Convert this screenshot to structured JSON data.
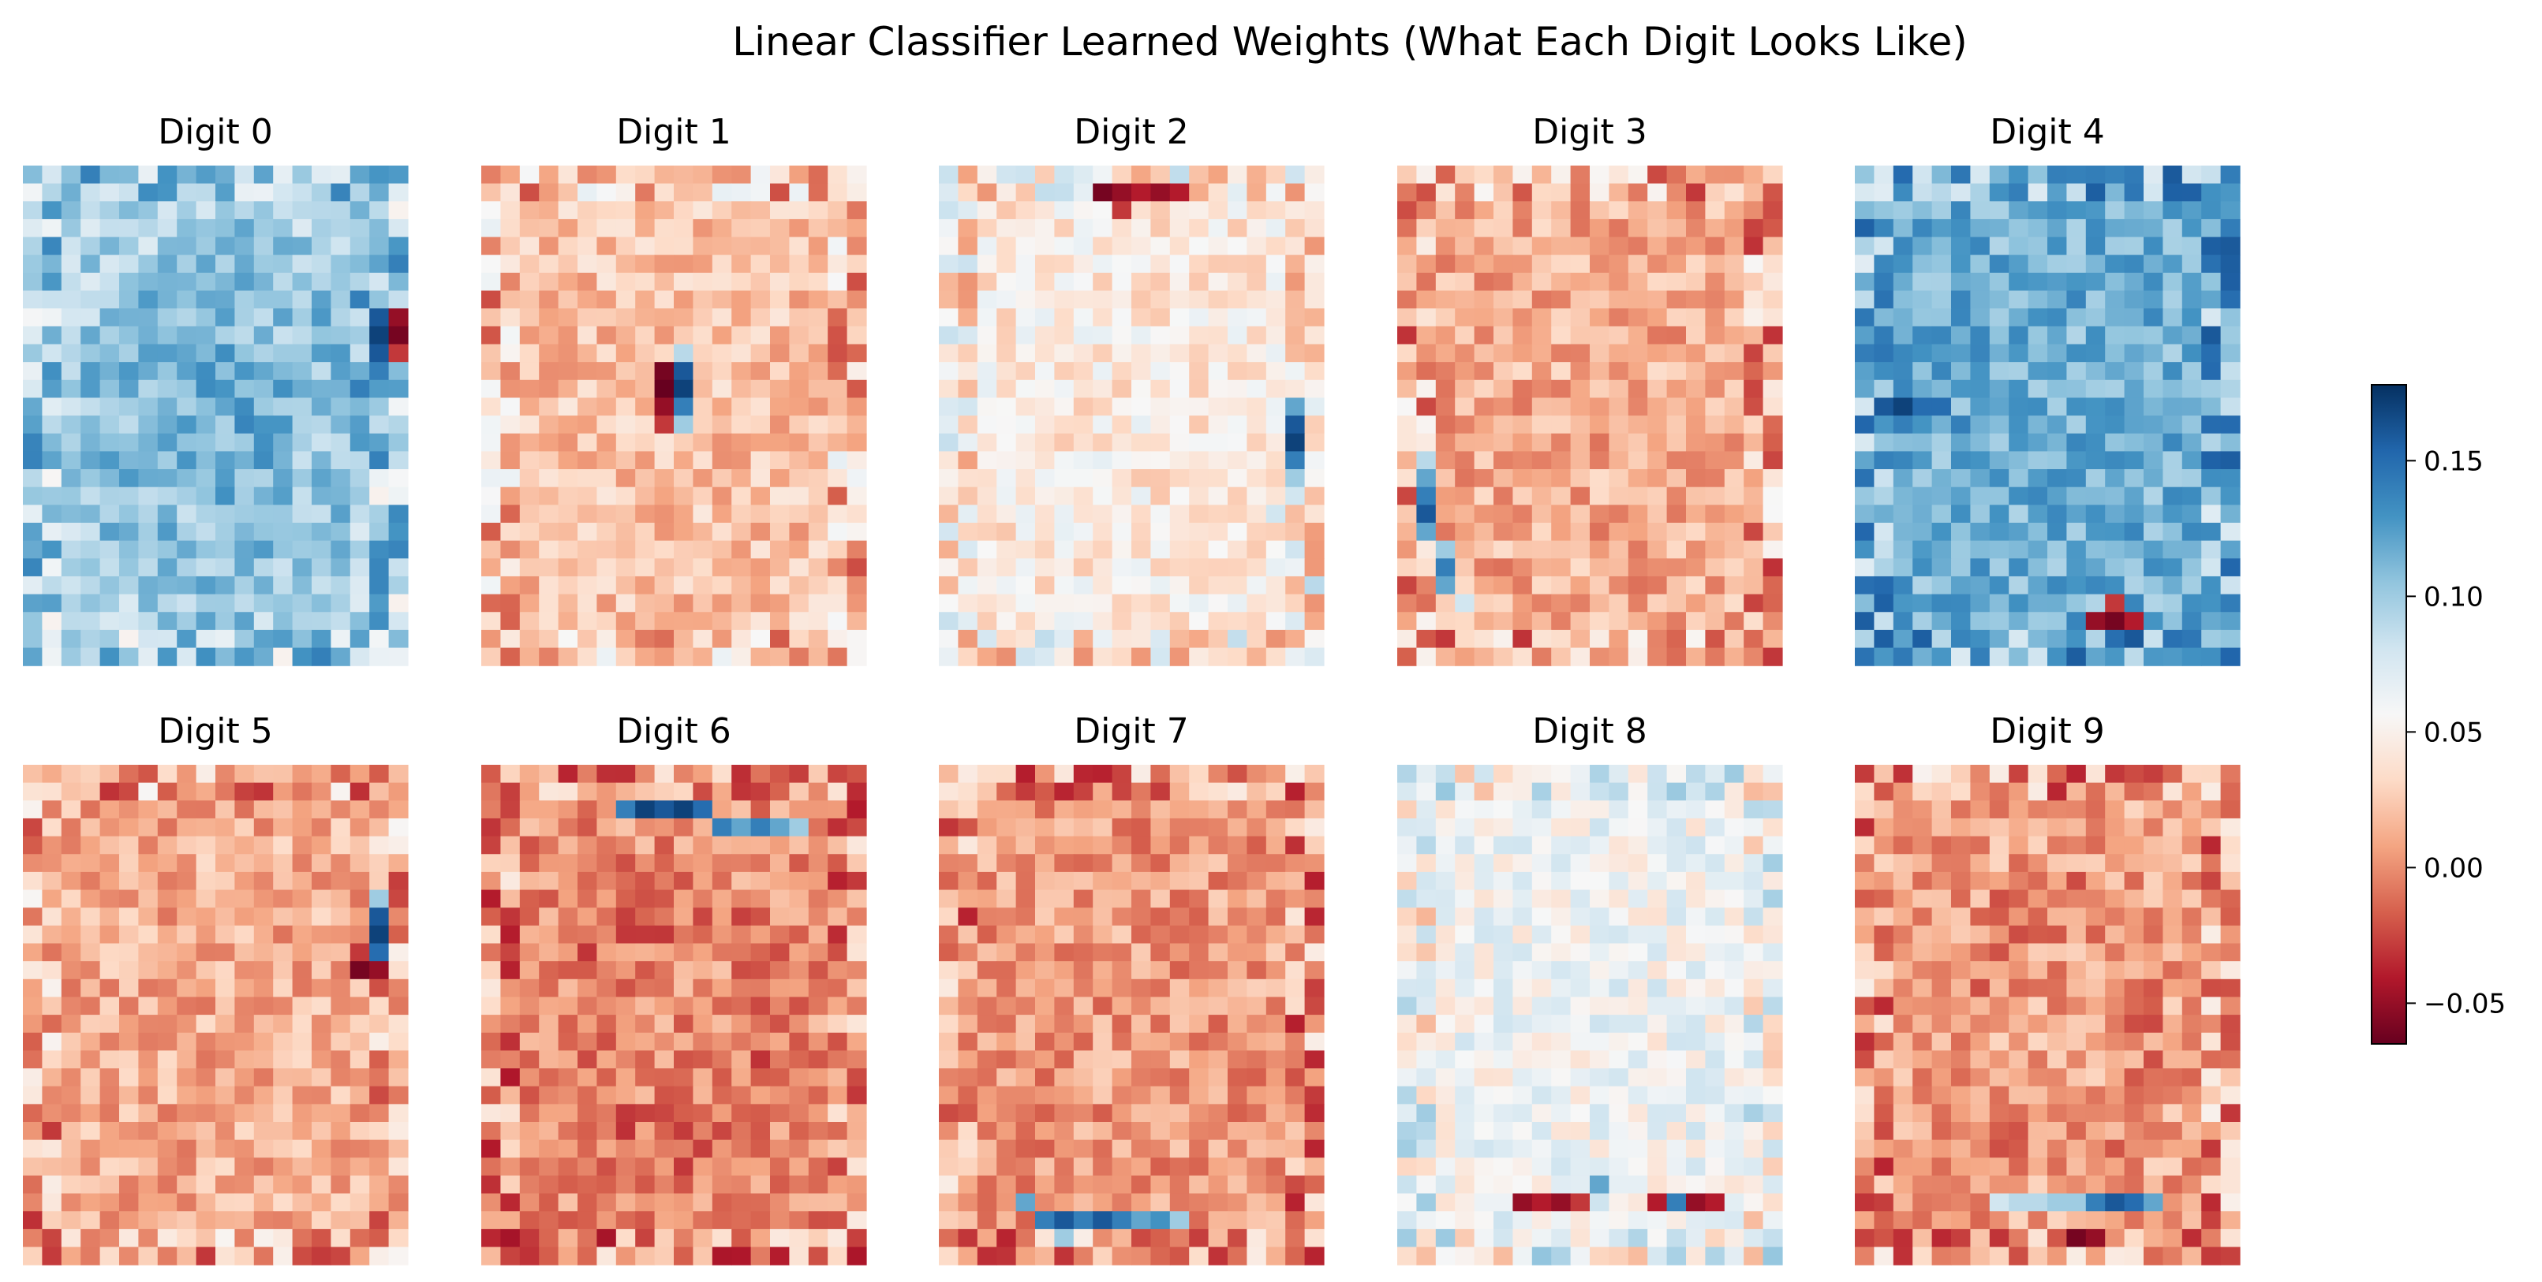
{
  "chart_data": {
    "type": "heatmap",
    "title": "Linear Classifier Learned Weights (What Each Digit Looks Like)",
    "grid": false,
    "axes_visible": false,
    "layout": {
      "rows": 2,
      "cols": 5
    },
    "image_shape": {
      "rows": 28,
      "cols": 20
    },
    "colormap": {
      "name": "RdBu",
      "stops": [
        "#67001f",
        "#b2182b",
        "#d6604d",
        "#f4a582",
        "#fddbc7",
        "#f7f7f7",
        "#d1e5f0",
        "#92c5de",
        "#4393c3",
        "#2166ac",
        "#053061"
      ]
    },
    "colorbar": {
      "range": [
        -0.065,
        0.178
      ],
      "ticks": [
        -0.05,
        0.0,
        0.05,
        0.1,
        0.15
      ],
      "tick_labels": [
        "−0.05",
        "0.00",
        "0.05",
        "0.10",
        "0.15"
      ],
      "placement": "right"
    },
    "panels": [
      {
        "label": "Digit 0",
        "digit": 0,
        "mean_weight": 0.095,
        "pattern": "blue ring with lighter center; dark red/blue stroke near right edge rows 8-11"
      },
      {
        "label": "Digit 1",
        "digit": 1,
        "mean_weight": 0.022,
        "pattern": "light red background; dark red/blue vertical pair near center rows 11-14"
      },
      {
        "label": "Digit 2",
        "digit": 2,
        "mean_weight": 0.045,
        "pattern": "very light pink; dark red bar at top rows 1-2; blue strokes at right rows 13-19"
      },
      {
        "label": "Digit 3",
        "digit": 3,
        "mean_weight": 0.012,
        "pattern": "red background; light blue strokes along left side rows 17-24"
      },
      {
        "label": "Digit 4",
        "digit": 4,
        "mean_weight": 0.115,
        "pattern": "blue background; darker blue band rows 13-15; dark red spots at bottom row 25"
      },
      {
        "label": "Digit 5",
        "digit": 5,
        "mean_weight": 0.012,
        "pattern": "red background; dark blue vertical stroke at right rows 7-11"
      },
      {
        "label": "Digit 6",
        "digit": 6,
        "mean_weight": 0.0,
        "pattern": "red background; dark blue horizontal bar at top rows 2-3"
      },
      {
        "label": "Digit 7",
        "digit": 7,
        "mean_weight": 0.005,
        "pattern": "red background; blue horizontal bar at bottom rows 24-26"
      },
      {
        "label": "Digit 8",
        "digit": 8,
        "mean_weight": 0.06,
        "pattern": "mixed pale blue and light red speckle; dark red spots at bottom row 24"
      },
      {
        "label": "Digit 9",
        "digit": 9,
        "mean_weight": 0.008,
        "pattern": "red background; blue/white bar at bottom row 24"
      }
    ]
  }
}
